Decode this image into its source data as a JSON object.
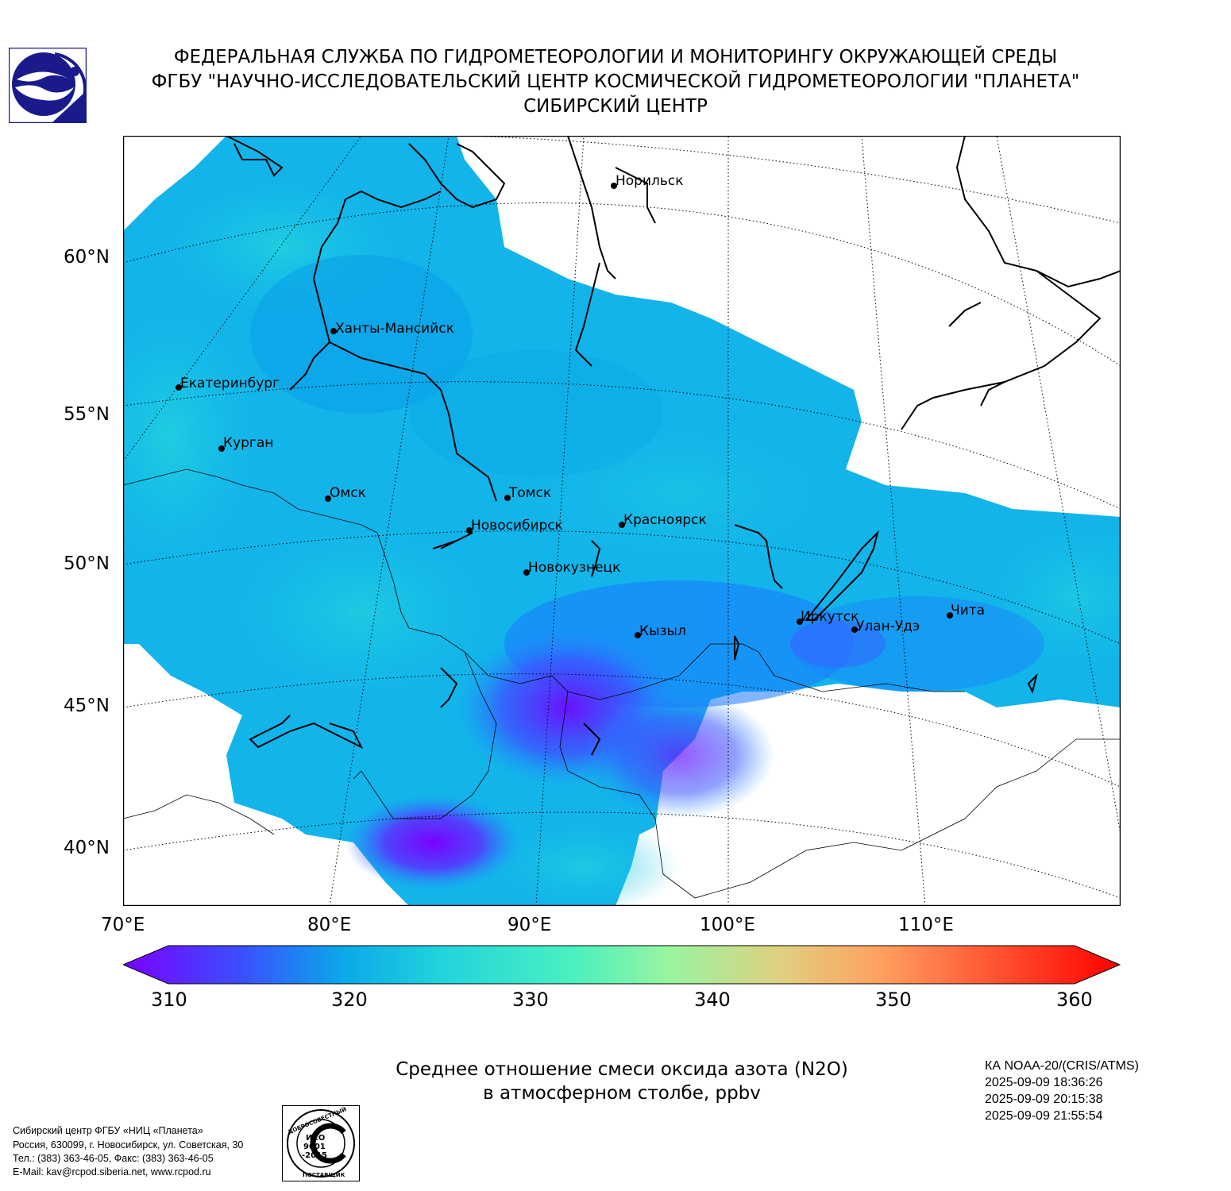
{
  "header": {
    "line1": "ФЕДЕРАЛЬНАЯ СЛУЖБА ПО ГИДРОМЕТЕОРОЛОГИИ И МОНИТОРИНГУ ОКРУЖАЮЩЕЙ СРЕДЫ",
    "line2": "ФГБУ \"НАУЧНО-ИССЛЕДОВАТЕЛЬСКИЙ ЦЕНТР КОСМИЧЕСКОЙ ГИДРОМЕТЕОРОЛОГИИ \"ПЛАНЕТА\"",
    "line3": "СИБИРСКИЙ ЦЕНТР"
  },
  "map": {
    "lat_labels": [
      "60°N",
      "55°N",
      "50°N",
      "45°N",
      "40°N"
    ],
    "lon_labels": [
      "70°E",
      "80°E",
      "90°E",
      "100°E",
      "110°E"
    ],
    "cities": [
      {
        "name": "Норильск"
      },
      {
        "name": "Ханты-Мансийск"
      },
      {
        "name": "Екатеринбург"
      },
      {
        "name": "Курган"
      },
      {
        "name": "Омск"
      },
      {
        "name": "Томск"
      },
      {
        "name": "Новосибирск"
      },
      {
        "name": "Красноярск"
      },
      {
        "name": "Новокузнецк"
      },
      {
        "name": "Кызыл"
      },
      {
        "name": "Иркутск"
      },
      {
        "name": "Улан-Удэ"
      },
      {
        "name": "Чита"
      }
    ],
    "colors": {
      "low": "#7a00ff",
      "mid_low": "#1e90ff",
      "mid": "#19c4e6",
      "mid_high": "#4de8c8",
      "high_yellow": "#e0d080",
      "high": "#ff0000"
    }
  },
  "colorbar": {
    "ticks": [
      "310",
      "320",
      "330",
      "340",
      "350",
      "360"
    ],
    "min": 310,
    "max": 360
  },
  "title": {
    "line1": "Среднее отношение смеси оксида азота (N2O)",
    "line2": "в атмосферном столбе, ppbv"
  },
  "satellite": {
    "name": "КА NOAA-20/(CRIS/ATMS)",
    "time1": "2025-09-09 18:36:26",
    "time2": "2025-09-09 20:15:38",
    "time3": "2025-09-09 21:55:54"
  },
  "footer": {
    "line1": "Сибирский центр ФГБУ «НИЦ «Планета»",
    "line2": "Россия, 630099, г. Новосибирск, ул. Советская, 30",
    "line3": "Тел.: (383) 363-46-05, Факс: (383) 363-46-05",
    "line4": "E-Mail: kav@rcpod.siberia.net, www.rcpod.ru"
  },
  "iso_badge": {
    "top_text": "ДОБРОСОВЕСТНЫЙ",
    "bottom_text": "ПОСТАВЩИК",
    "code1": "ИСО",
    "code2": "9001",
    "code3": "-2015"
  }
}
